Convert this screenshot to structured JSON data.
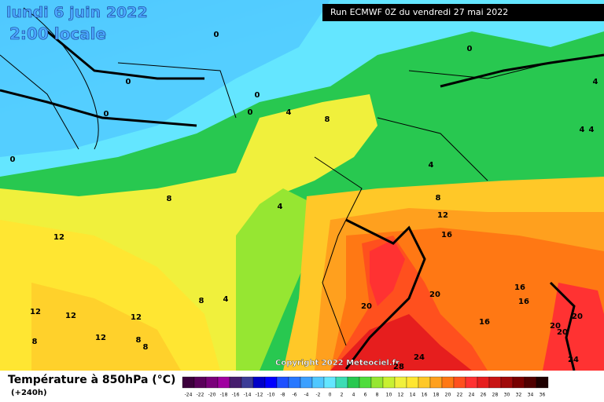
{
  "map": {
    "date": "lundi 6 juin 2022",
    "time": "2:00 locale",
    "run": "Run ECMWF 0Z du vendredi 27 mai 2022",
    "copyright": "Copyright 2022 Meteociel.fr"
  },
  "legend": {
    "title": "Température à 850hPa (°C)",
    "subtitle": "(+240h)",
    "ticks": [
      -24,
      -22,
      -20,
      -18,
      -16,
      -14,
      -12,
      -10,
      -8,
      -6,
      -4,
      -2,
      0,
      2,
      4,
      6,
      8,
      10,
      12,
      14,
      16,
      18,
      20,
      22,
      24,
      26,
      28,
      30,
      32,
      34,
      36
    ],
    "colors": [
      "#3c003c",
      "#5a005a",
      "#7a007a",
      "#a000a0",
      "#461e6e",
      "#3c3c96",
      "#0000c8",
      "#0000ff",
      "#1e50ff",
      "#2878ff",
      "#3ca0ff",
      "#50c8ff",
      "#64e6ff",
      "#3cdcb4",
      "#28c850",
      "#50dc3c",
      "#96e632",
      "#c8f032",
      "#f0f03c",
      "#ffe632",
      "#ffc828",
      "#ffa01e",
      "#ff7814",
      "#ff501e",
      "#ff3232",
      "#e61e1e",
      "#c81414",
      "#a00a0a",
      "#780000",
      "#500000",
      "#1e0000"
    ]
  },
  "contour_labels": [
    "0",
    "0",
    "0",
    "0",
    "0",
    "0",
    "0",
    "4",
    "8",
    "4",
    "4",
    "4",
    "4",
    "8",
    "4",
    "8",
    "12",
    "16",
    "12",
    "12",
    "12",
    "12",
    "12",
    "8",
    "4",
    "8",
    "8",
    "8",
    "20",
    "20",
    "16",
    "16",
    "16",
    "20",
    "20",
    "20",
    "24",
    "24",
    "28"
  ]
}
